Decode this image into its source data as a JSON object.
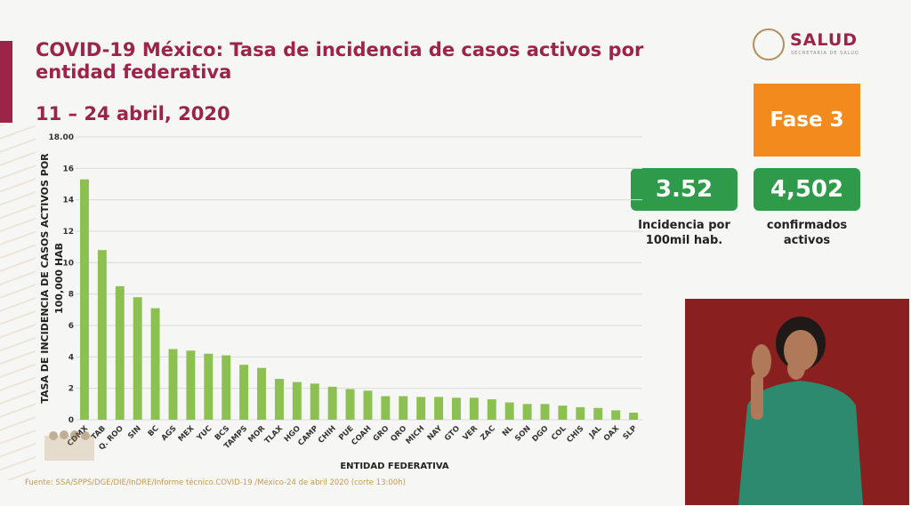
{
  "header": {
    "title": "COVID-19 México: Tasa de incidencia de casos activos por entidad federativa",
    "date_range": "11 – 24 abril, 2020"
  },
  "logo": {
    "name": "SALUD",
    "subtitle": "SECRETARÍA DE SALUD"
  },
  "phase_badge": "Fase 3",
  "stats": [
    {
      "value": "3.52",
      "label_line1": "Incidencia por",
      "label_line2": "100mil hab."
    },
    {
      "value": "4,502",
      "label_line1": "confirmados",
      "label_line2": "activos"
    }
  ],
  "source": "Fuente: SSA/SPPS/DGE/DIE/InDRE/Informe técnico.COVID-19 /México-24 de abril 2020 (corte 13:00h)",
  "colors": {
    "accent": "#9d2449",
    "bars": "#8cc152",
    "phase": "#f28a1e",
    "stat": "#2f9b4a"
  },
  "chart_data": {
    "type": "bar",
    "xlabel": "ENTIDAD FEDERATIVA",
    "ylabel_line1": "TASA DE INCIDENCIA DE CASOS ACTIVOS  POR",
    "ylabel_line2": "100,000 HAB",
    "ylim": [
      0,
      18
    ],
    "yticks": [
      "0",
      "2",
      "4",
      "6",
      "8",
      "10",
      "12",
      "14",
      "16",
      "18.00"
    ],
    "grid": true,
    "categories": [
      "CDMX",
      "TAB",
      "Q. ROO",
      "SIN",
      "BC",
      "AGS",
      "MEX",
      "YUC",
      "BCS",
      "TAMPS",
      "MOR",
      "TLAX",
      "HGO",
      "CAMP",
      "CHIH",
      "PUE",
      "COAH",
      "GRO",
      "QRO",
      "MICH",
      "NAY",
      "GTO",
      "VER",
      "ZAC",
      "NL",
      "SON",
      "DGO",
      "COL",
      "CHIS",
      "JAL",
      "OAX",
      "SLP"
    ],
    "values": [
      15.3,
      10.8,
      8.5,
      7.8,
      7.1,
      4.5,
      4.4,
      4.2,
      4.1,
      3.5,
      3.3,
      2.6,
      2.4,
      2.3,
      2.1,
      1.95,
      1.85,
      1.5,
      1.5,
      1.45,
      1.45,
      1.4,
      1.4,
      1.3,
      1.1,
      1.0,
      1.0,
      0.9,
      0.8,
      0.75,
      0.6,
      0.45
    ]
  }
}
